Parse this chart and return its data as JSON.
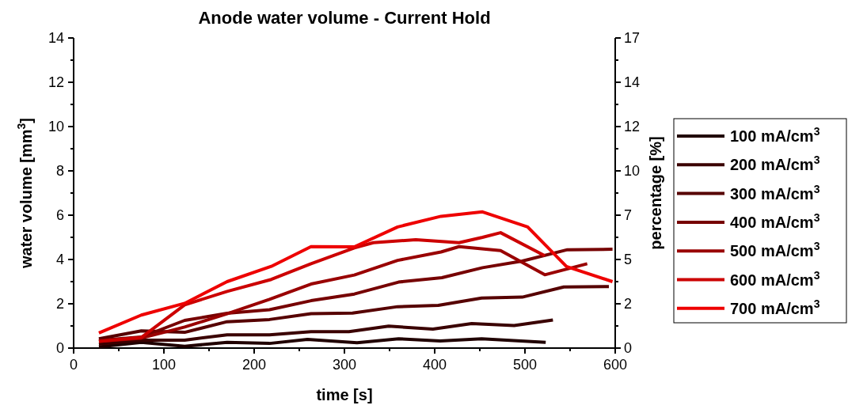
{
  "chart_data": {
    "type": "line",
    "title": "Anode water volume - Current Hold",
    "xlabel": "time [s]",
    "ylabel": "water volume [mm$^{3}$]",
    "y2label": "percentage [%]",
    "xlim": [
      0,
      600
    ],
    "xticks": [
      0,
      {
        "value": 50,
        "label": null
      },
      100,
      {
        "value": 150,
        "label": null
      },
      200,
      {
        "value": 250,
        "label": null
      },
      300,
      {
        "value": 350,
        "label": null
      },
      400,
      {
        "value": 450,
        "label": null
      },
      500,
      {
        "value": 550,
        "label": null
      },
      600
    ],
    "ylim": [
      0,
      14
    ],
    "yticks": [
      0,
      {
        "value": 1,
        "label": null
      },
      2,
      {
        "value": 3,
        "label": null
      },
      4,
      {
        "value": 5,
        "label": null
      },
      6,
      {
        "value": 7,
        "label": null
      },
      8,
      {
        "value": 9,
        "label": null
      },
      10,
      {
        "value": 11,
        "label": null
      },
      12,
      {
        "value": 13,
        "label": null
      },
      14
    ],
    "y2lim": [
      0,
      16.8
    ],
    "y2ticks": [
      0,
      {
        "value": 1.2,
        "label": null
      },
      {
        "value": 2.4,
        "label": "2"
      },
      {
        "value": 3.6,
        "label": null
      },
      {
        "value": 4.8,
        "label": "5"
      },
      {
        "value": 6,
        "label": null
      },
      {
        "value": 7.2,
        "label": "7"
      },
      {
        "value": 8.4,
        "label": null
      },
      {
        "value": 9.6,
        "label": "10"
      },
      {
        "value": 10.8,
        "label": null
      },
      12,
      {
        "value": 13.2,
        "label": null
      },
      {
        "value": 14.4,
        "label": "14"
      },
      {
        "value": 15.6,
        "label": null
      },
      {
        "value": 16.8,
        "label": "17"
      }
    ],
    "legend": "right",
    "grid": false,
    "marker": "none",
    "line_style": "solid",
    "series": [
      {
        "name": "100 mA/cm$^{3}$",
        "color": "#200000",
        "x": [
          28,
          75,
          123,
          170,
          217,
          259,
          314,
          360,
          406,
          452,
          523
        ],
        "values": [
          0.05,
          0.26,
          0.08,
          0.26,
          0.21,
          0.39,
          0.24,
          0.42,
          0.32,
          0.42,
          0.26
        ]
      },
      {
        "name": "200 mA/cm$^{3}$",
        "color": "#3a0000",
        "x": [
          28,
          75,
          123,
          170,
          217,
          263,
          305,
          349,
          398,
          441,
          488,
          531
        ],
        "values": [
          0.18,
          0.36,
          0.36,
          0.6,
          0.6,
          0.74,
          0.74,
          0.99,
          0.86,
          1.11,
          1.02,
          1.27
        ]
      },
      {
        "name": "300 mA/cm$^{3}$",
        "color": "#560000",
        "x": [
          28,
          75,
          123,
          170,
          217,
          263,
          309,
          359,
          404,
          452,
          497,
          543,
          593
        ],
        "values": [
          0.42,
          0.78,
          0.71,
          1.19,
          1.29,
          1.55,
          1.58,
          1.87,
          1.93,
          2.26,
          2.3,
          2.76,
          2.78
        ]
      },
      {
        "name": "400 mA/cm$^{3}$",
        "color": "#760000",
        "x": [
          28,
          75,
          123,
          170,
          217,
          263,
          311,
          360,
          408,
          453,
          497,
          547,
          597
        ],
        "values": [
          0.35,
          0.5,
          1.25,
          1.57,
          1.73,
          2.14,
          2.44,
          2.98,
          3.18,
          3.63,
          3.93,
          4.44,
          4.46
        ]
      },
      {
        "name": "500 mA/cm$^{3}$",
        "color": "#990000",
        "x": [
          28,
          75,
          123,
          170,
          217,
          263,
          311,
          359,
          407,
          427,
          473,
          522,
          569
        ],
        "values": [
          0.3,
          0.45,
          0.95,
          1.55,
          2.2,
          2.89,
          3.3,
          3.96,
          4.34,
          4.58,
          4.4,
          3.31,
          3.81
        ]
      },
      {
        "name": "600 mA/cm$^{3}$",
        "color": "#cc0000",
        "x": [
          28,
          75,
          123,
          170,
          219,
          263,
          311,
          332,
          379,
          427,
          453,
          473,
          522
        ],
        "values": [
          0.3,
          0.48,
          1.95,
          2.56,
          3.1,
          3.81,
          4.52,
          4.76,
          4.89,
          4.76,
          5.0,
          5.21,
          4.17
        ]
      },
      {
        "name": "700 mA/cm$^{3}$",
        "color": "#ee0000",
        "x": [
          28,
          75,
          123,
          170,
          219,
          263,
          311,
          359,
          407,
          453,
          503,
          546,
          597
        ],
        "values": [
          0.68,
          1.49,
          2.02,
          3.0,
          3.69,
          4.58,
          4.57,
          5.47,
          5.95,
          6.15,
          5.47,
          3.68,
          3.0
        ]
      }
    ]
  }
}
